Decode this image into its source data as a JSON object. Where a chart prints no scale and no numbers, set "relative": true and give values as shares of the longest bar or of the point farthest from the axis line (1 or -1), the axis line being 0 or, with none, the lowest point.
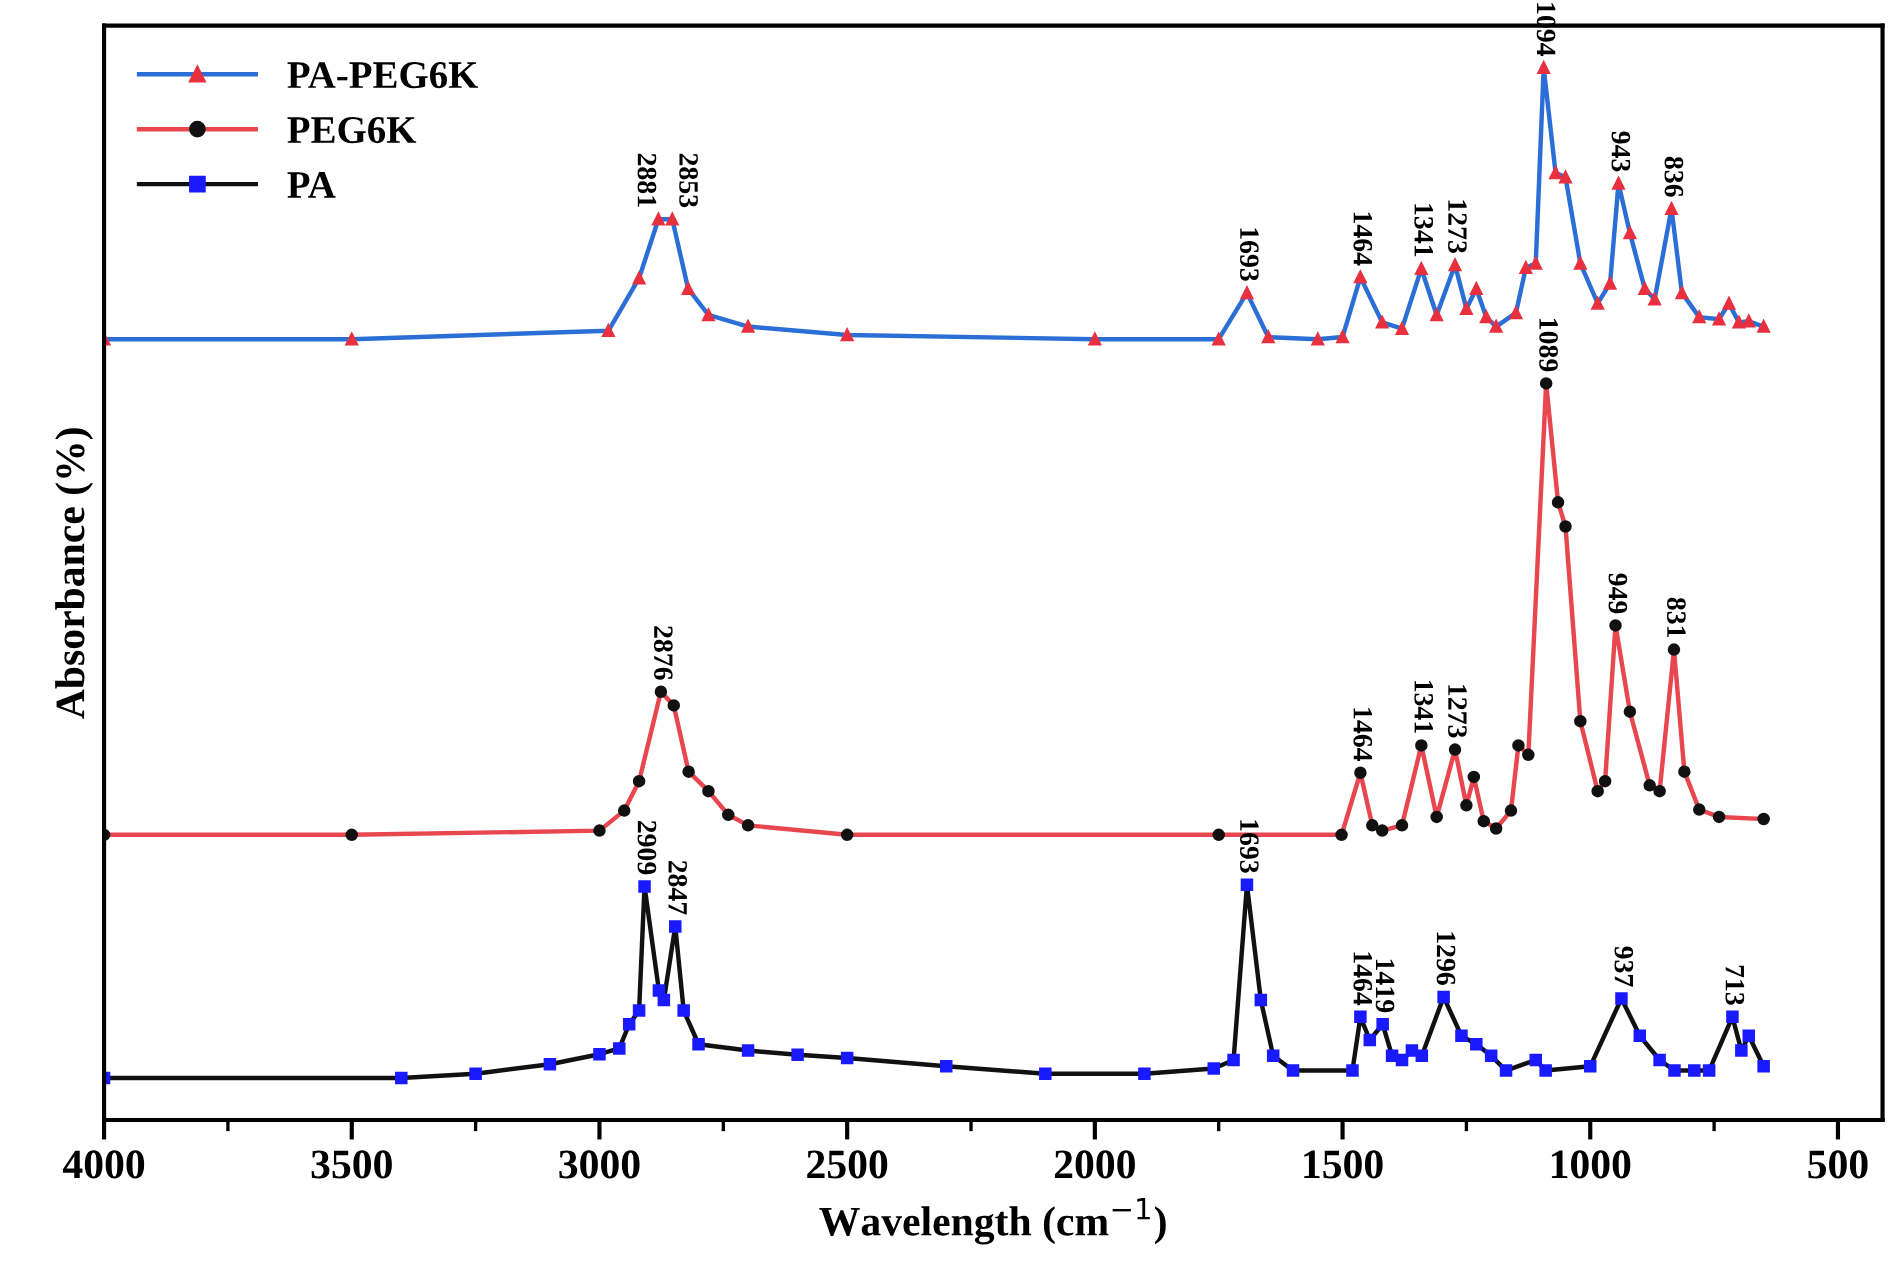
{
  "chart_data": {
    "type": "line",
    "relative": true,
    "xlabel": "Wavelength (cm$^{−1}$)",
    "ylabel": "Absorbance (%)",
    "xlim": [
      4000,
      410
    ],
    "xticks": [
      4000,
      3500,
      3000,
      2500,
      2000,
      1500,
      1000,
      500
    ],
    "grid": false,
    "legend": "top left",
    "line_style": "solid",
    "series": [
      {
        "name": "PA-PEG6K",
        "color": "#2b6fd6",
        "marker": "triangle",
        "x": [
          4000,
          3500,
          2982,
          2920,
          2881,
          2853,
          2821,
          2780,
          2700,
          2500,
          2000,
          1750,
          1693,
          1650,
          1550,
          1500,
          1464,
          1420,
          1380,
          1341,
          1310,
          1273,
          1250,
          1230,
          1210,
          1190,
          1150,
          1130,
          1110,
          1094,
          1070,
          1050,
          1020,
          985,
          960,
          943,
          920,
          890,
          870,
          836,
          815,
          780,
          740,
          720,
          700,
          680,
          650
        ],
        "values": [
          0.742,
          0.742,
          0.75,
          0.8,
          0.856,
          0.856,
          0.79,
          0.765,
          0.754,
          0.746,
          0.742,
          0.742,
          0.786,
          0.744,
          0.742,
          0.744,
          0.801,
          0.758,
          0.752,
          0.809,
          0.765,
          0.8125,
          0.771,
          0.79,
          0.763,
          0.754,
          0.767,
          0.81,
          0.814,
          1.0,
          0.9,
          0.896,
          0.814,
          0.776,
          0.795,
          0.89,
          0.843,
          0.79,
          0.78,
          0.866,
          0.786,
          0.763,
          0.761,
          0.776,
          0.758,
          0.759,
          0.754
        ]
      },
      {
        "name": "PEG6K",
        "color": "#e8474f",
        "marker": "circle",
        "x": [
          4000,
          3500,
          3000,
          2950,
          2920,
          2876,
          2850,
          2820,
          2780,
          2740,
          2700,
          2500,
          1750,
          1502,
          1464,
          1440,
          1420,
          1380,
          1341,
          1310,
          1273,
          1250,
          1235,
          1215,
          1190,
          1160,
          1145,
          1125,
          1089,
          1065,
          1050,
          1020,
          985,
          970,
          949,
          920,
          880,
          860,
          831,
          810,
          780,
          740,
          650
        ],
        "values": [
          0.271,
          0.271,
          0.275,
          0.294,
          0.322,
          0.407,
          0.394,
          0.331,
          0.3125,
          0.29,
          0.28,
          0.271,
          0.271,
          0.271,
          0.33,
          0.28,
          0.275,
          0.28,
          0.356,
          0.288,
          0.352,
          0.299,
          0.326,
          0.284,
          0.277,
          0.294,
          0.356,
          0.347,
          0.7,
          0.587,
          0.564,
          0.379,
          0.3125,
          0.322,
          0.47,
          0.388,
          0.318,
          0.3125,
          0.447,
          0.331,
          0.295,
          0.288,
          0.286
        ]
      },
      {
        "name": "PA",
        "color": "#111111",
        "marker": "square",
        "x": [
          4000,
          3400,
          3250,
          3100,
          3000,
          2960,
          2940,
          2920,
          2909,
          2880,
          2870,
          2847,
          2830,
          2800,
          2700,
          2600,
          2500,
          2300,
          2100,
          1900,
          1760,
          1720,
          1693,
          1665,
          1640,
          1600,
          1480,
          1464,
          1445,
          1419,
          1400,
          1380,
          1360,
          1340,
          1296,
          1260,
          1230,
          1200,
          1170,
          1110,
          1090,
          1000,
          937,
          900,
          860,
          830,
          790,
          760,
          713,
          695,
          680,
          650
        ],
        "values": [
          0.04,
          0.04,
          0.044,
          0.053,
          0.0625,
          0.068,
          0.091,
          0.104,
          0.222,
          0.123,
          0.114,
          0.184,
          0.104,
          0.072,
          0.066,
          0.062,
          0.059,
          0.051,
          0.044,
          0.044,
          0.049,
          0.057,
          0.2235,
          0.114,
          0.061,
          0.047,
          0.047,
          0.098,
          0.076,
          0.091,
          0.061,
          0.057,
          0.066,
          0.061,
          0.117,
          0.08,
          0.072,
          0.061,
          0.047,
          0.057,
          0.047,
          0.051,
          0.1155,
          0.08,
          0.057,
          0.047,
          0.047,
          0.047,
          0.098,
          0.066,
          0.08,
          0.051
        ]
      }
    ],
    "annotations": [
      {
        "text": "2881",
        "x": 2881,
        "y": 0.856
      },
      {
        "text": "2853",
        "x": 2853,
        "y": 0.856
      },
      {
        "text": "1693",
        "x": 1693,
        "y": 0.786
      },
      {
        "text": "1464",
        "x": 1464,
        "y": 0.801
      },
      {
        "text": "1341",
        "x": 1341,
        "y": 0.809
      },
      {
        "text": "1273",
        "x": 1273,
        "y": 0.8125
      },
      {
        "text": "1094",
        "x": 1094,
        "y": 1.0
      },
      {
        "text": "943",
        "x": 943,
        "y": 0.89
      },
      {
        "text": "836",
        "x": 836,
        "y": 0.866
      },
      {
        "text": "2876",
        "x": 2876,
        "y": 0.407
      },
      {
        "text": "1464",
        "x": 1464,
        "y": 0.33
      },
      {
        "text": "1341",
        "x": 1341,
        "y": 0.356
      },
      {
        "text": "1273",
        "x": 1273,
        "y": 0.352
      },
      {
        "text": "1089",
        "x": 1089,
        "y": 0.7
      },
      {
        "text": "949",
        "x": 949,
        "y": 0.47
      },
      {
        "text": "831",
        "x": 831,
        "y": 0.447
      },
      {
        "text": "2909",
        "x": 2909,
        "y": 0.222
      },
      {
        "text": "2847",
        "x": 2847,
        "y": 0.184
      },
      {
        "text": "1693",
        "x": 1693,
        "y": 0.2235
      },
      {
        "text": "1464",
        "x": 1464,
        "y": 0.098
      },
      {
        "text": "1419",
        "x": 1419,
        "y": 0.091
      },
      {
        "text": "1296",
        "x": 1296,
        "y": 0.117
      },
      {
        "text": "937",
        "x": 937,
        "y": 0.1155
      },
      {
        "text": "713",
        "x": 713,
        "y": 0.098
      }
    ]
  }
}
